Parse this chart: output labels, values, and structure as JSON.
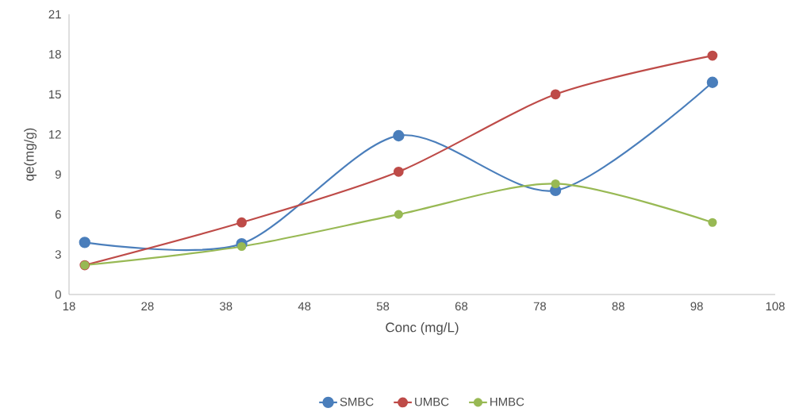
{
  "chart_data": {
    "type": "line",
    "xlabel": "Conc (mg/L)",
    "ylabel": "qe(mg/g)",
    "x": [
      20,
      40,
      60,
      80,
      100
    ],
    "series": [
      {
        "name": "SMBC",
        "color": "#4a7ebb",
        "values": [
          3.9,
          3.8,
          11.9,
          7.8,
          15.9
        ]
      },
      {
        "name": "UMBC",
        "color": "#be4b48",
        "values": [
          2.2,
          5.4,
          9.2,
          15.0,
          17.9
        ]
      },
      {
        "name": "HMBC",
        "color": "#98b954",
        "values": [
          2.2,
          3.6,
          6.0,
          8.3,
          5.4
        ]
      }
    ],
    "xlim": [
      18,
      108
    ],
    "xticks": [
      18,
      28,
      38,
      48,
      58,
      68,
      78,
      88,
      98,
      108
    ],
    "ylim": [
      0,
      21
    ],
    "yticks": [
      0,
      3,
      6,
      9,
      12,
      15,
      18,
      21
    ],
    "legend": "bottom",
    "marker": "circle"
  }
}
